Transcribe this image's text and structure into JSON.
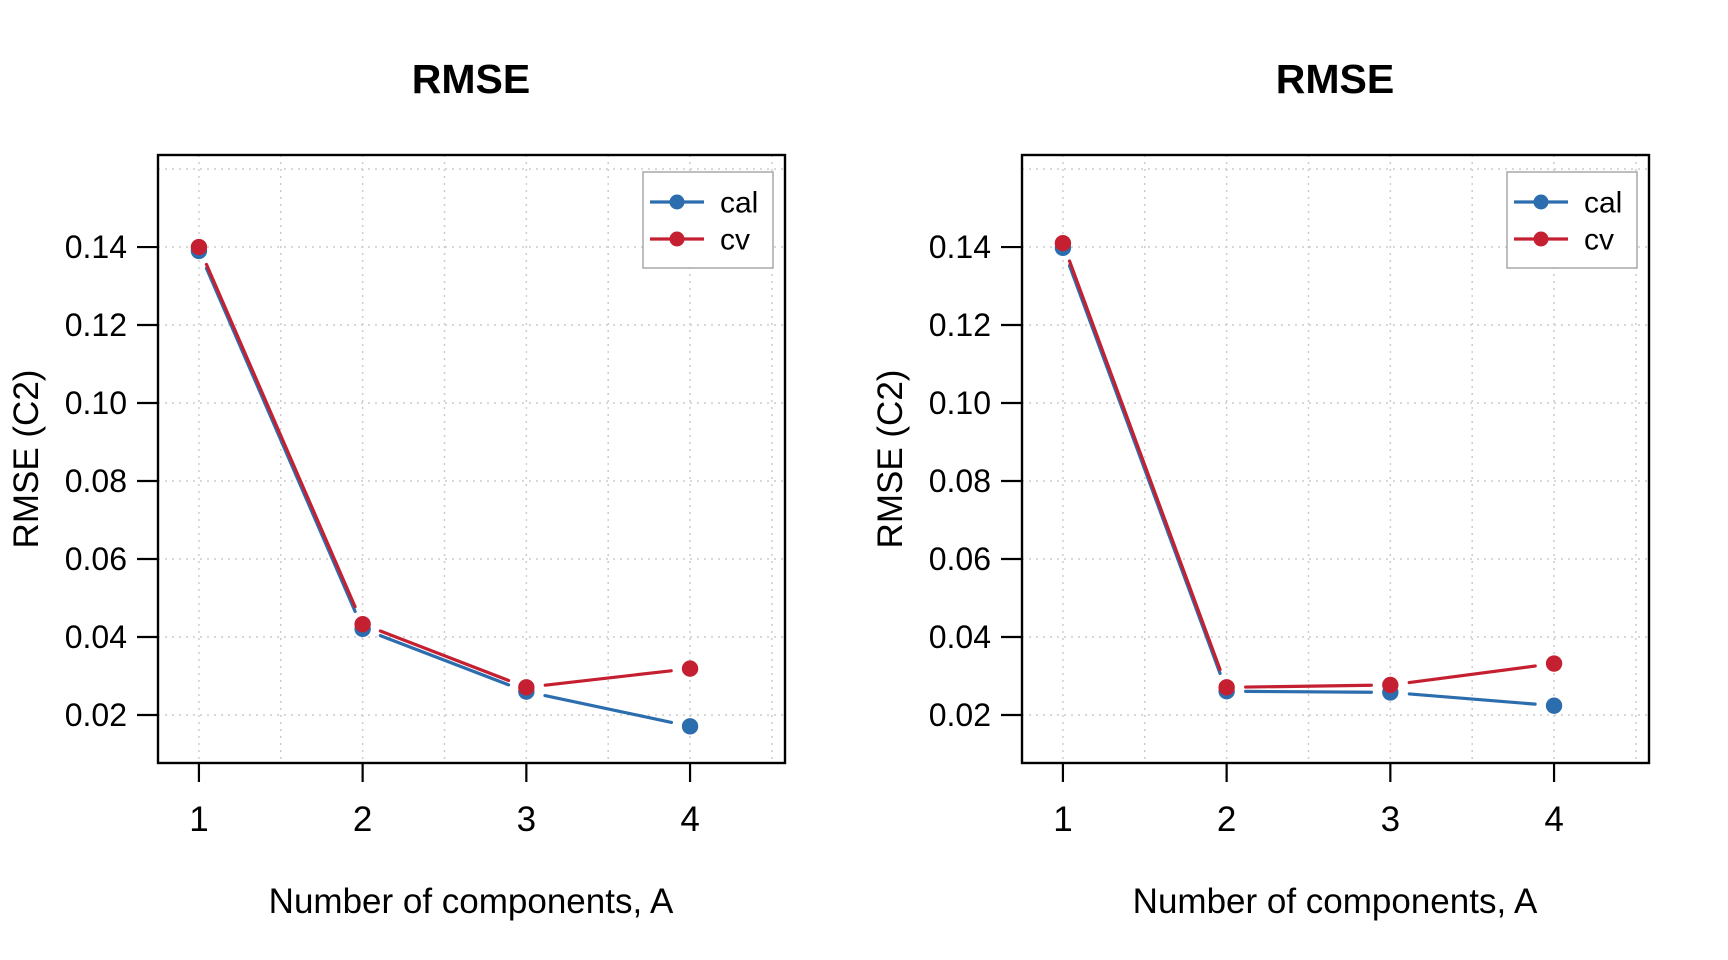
{
  "chart_data": [
    {
      "type": "line",
      "panel": "left",
      "title": "RMSE",
      "xlabel": "Number of components, A",
      "ylabel": "RMSE (C2)",
      "x": [
        1,
        2,
        3,
        4
      ],
      "series": [
        {
          "name": "cal",
          "color": "#2c6dae",
          "marker": "filled-circle",
          "values": [
            0.139,
            0.0421,
            0.026,
            0.0171
          ]
        },
        {
          "name": "cv",
          "color": "#c52031",
          "marker": "filled-circle",
          "values": [
            0.14,
            0.0433,
            0.0271,
            0.0319
          ]
        }
      ],
      "xlim": [
        0.75,
        4.58
      ],
      "ylim": [
        0.0077,
        0.1636
      ],
      "xticks": [
        "1",
        "2",
        "3",
        "4"
      ],
      "yticks": [
        "0.02",
        "0.04",
        "0.06",
        "0.08",
        "0.10",
        "0.12",
        "0.14"
      ],
      "grid": {
        "on": true,
        "style": "dotted",
        "color": "#cccccc",
        "x_step": 0.5,
        "y_step": 0.02
      },
      "legend": {
        "position": "top-right",
        "entries": [
          "cal",
          "cv"
        ]
      }
    },
    {
      "type": "line",
      "panel": "right",
      "title": "RMSE",
      "xlabel": "Number of components, A",
      "ylabel": "RMSE (C2)",
      "x": [
        1,
        2,
        3,
        4
      ],
      "series": [
        {
          "name": "cal",
          "color": "#2c6dae",
          "marker": "filled-circle",
          "values": [
            0.1398,
            0.0261,
            0.0258,
            0.0224
          ]
        },
        {
          "name": "cv",
          "color": "#c52031",
          "marker": "filled-circle",
          "values": [
            0.141,
            0.0271,
            0.0277,
            0.0332
          ]
        }
      ],
      "xlim": [
        0.75,
        4.58
      ],
      "ylim": [
        0.0077,
        0.1636
      ],
      "xticks": [
        "1",
        "2",
        "3",
        "4"
      ],
      "yticks": [
        "0.02",
        "0.04",
        "0.06",
        "0.08",
        "0.10",
        "0.12",
        "0.14"
      ],
      "grid": {
        "on": true,
        "style": "dotted",
        "color": "#cccccc",
        "x_step": 0.5,
        "y_step": 0.02
      },
      "legend": {
        "position": "top-right",
        "entries": [
          "cal",
          "cv"
        ]
      }
    }
  ],
  "colors": {
    "background": "#ffffff",
    "axis": "#000000",
    "grid": "#cccccc",
    "legend_border": "#a8a8a8",
    "series_cal": "#2c6dae",
    "series_cv": "#c52031"
  }
}
